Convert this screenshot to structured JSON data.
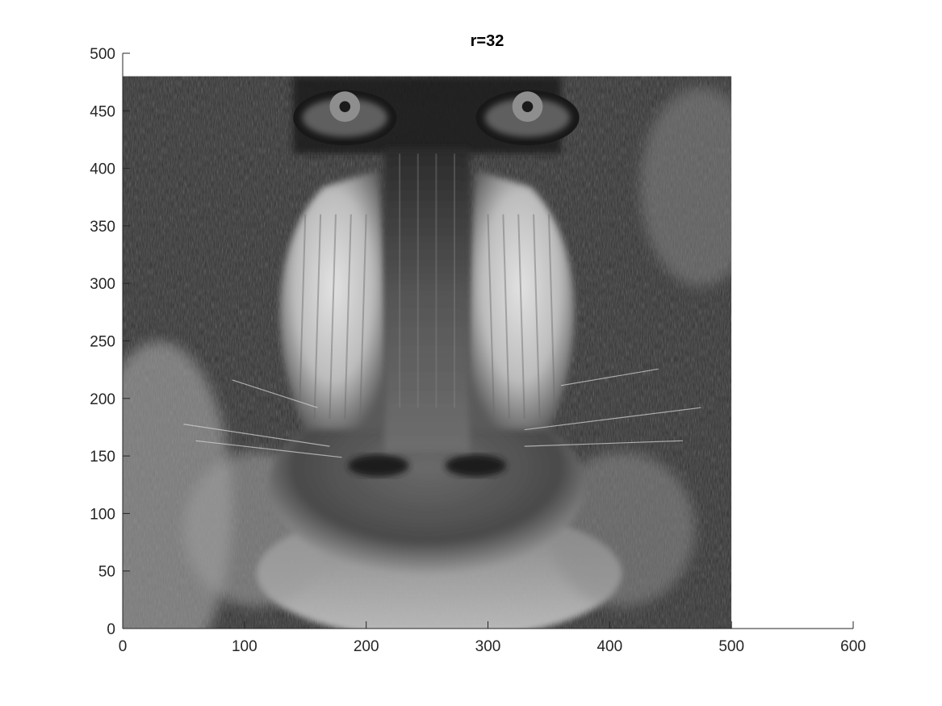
{
  "chart_data": {
    "type": "heatmap",
    "title": "r=32",
    "xlabel": "",
    "ylabel": "",
    "colormap": "gray",
    "xlim": [
      0,
      600
    ],
    "ylim": [
      0,
      500
    ],
    "image_extent": {
      "x": [
        0,
        500
      ],
      "y": [
        0,
        480
      ]
    },
    "image_content": "rank-32 low-rank approximation of a grayscale mandrill face",
    "x_ticks": [
      0,
      100,
      200,
      300,
      400,
      500,
      600
    ],
    "y_ticks": [
      0,
      50,
      100,
      150,
      200,
      250,
      300,
      350,
      400,
      450,
      500
    ],
    "x_tick_labels": [
      "0",
      "100",
      "200",
      "300",
      "400",
      "500",
      "600"
    ],
    "y_tick_labels": [
      "0",
      "50",
      "100",
      "150",
      "200",
      "250",
      "300",
      "350",
      "400",
      "450",
      "500"
    ],
    "grid": false,
    "box": false
  }
}
